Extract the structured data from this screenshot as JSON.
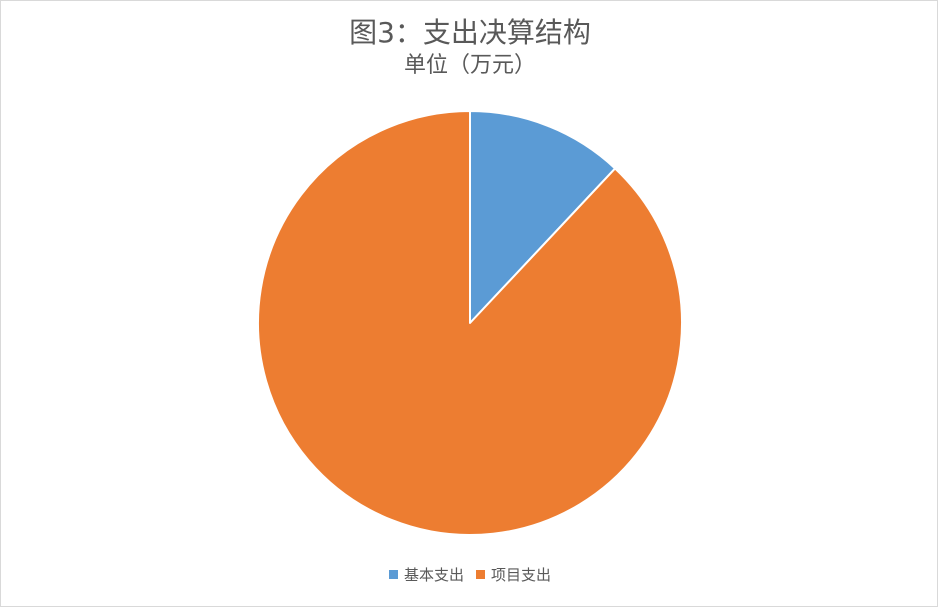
{
  "chart_data": {
    "type": "pie",
    "title": "图3：支出决算结构",
    "subtitle": "单位（万元）",
    "categories": [
      "基本支出",
      "项目支出"
    ],
    "values": [
      12,
      88
    ],
    "colors": [
      "#5b9bd5",
      "#ed7d31"
    ],
    "legend_position": "bottom",
    "data_labels": false
  }
}
